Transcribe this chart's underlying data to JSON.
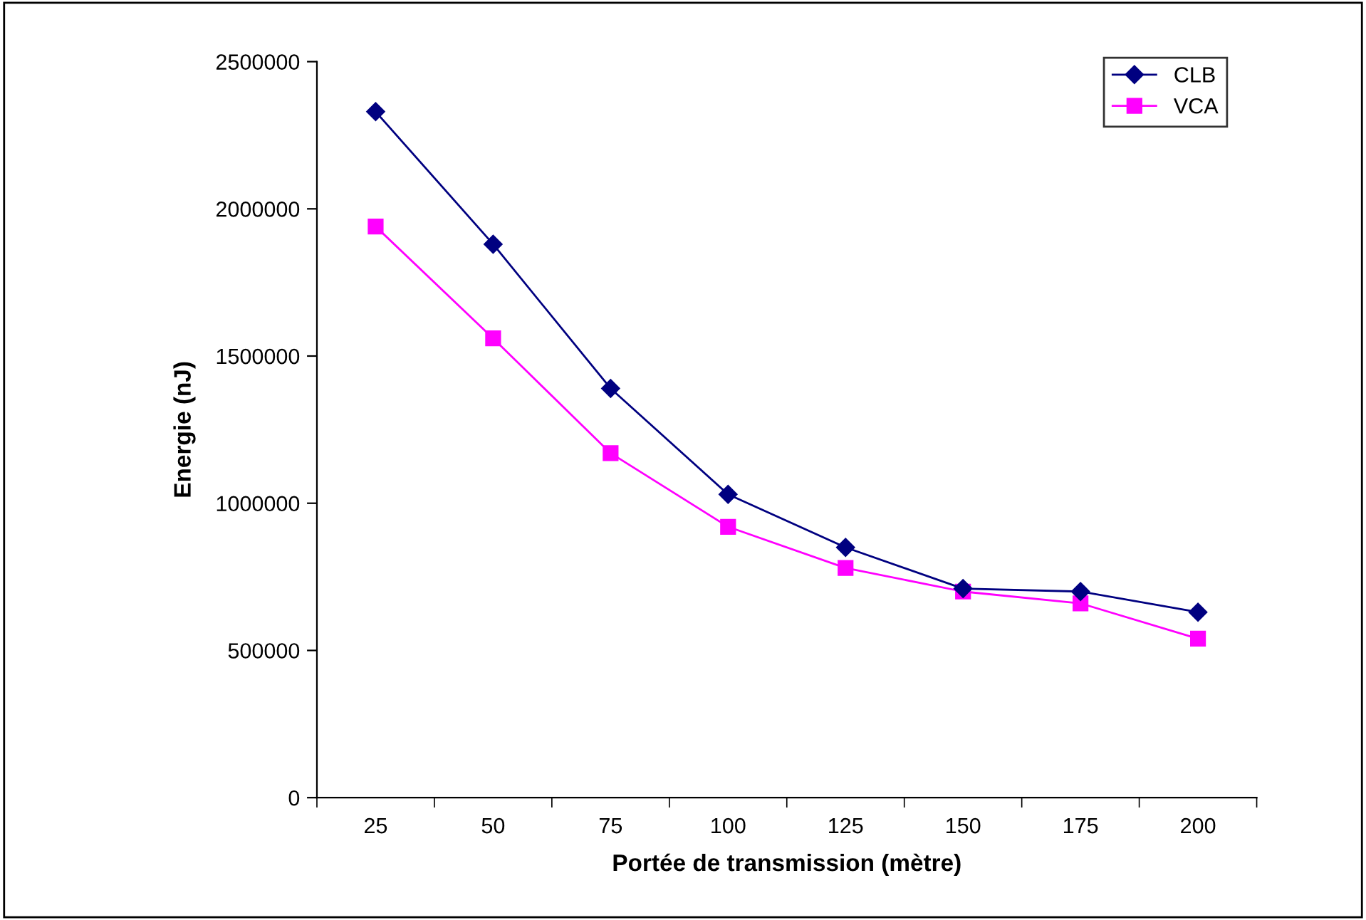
{
  "chart_data": {
    "type": "line",
    "xlabel": "Portée de transmission (mètre)",
    "ylabel": "Energie (nJ)",
    "categories": [
      "25",
      "50",
      "75",
      "100",
      "125",
      "150",
      "175",
      "200"
    ],
    "series": [
      {
        "name": "CLB",
        "color": "#000080",
        "marker": "diamond",
        "values": [
          2330000,
          1880000,
          1390000,
          1030000,
          850000,
          710000,
          700000,
          630000
        ]
      },
      {
        "name": "VCA",
        "color": "#ff00ff",
        "marker": "square",
        "values": [
          1940000,
          1560000,
          1170000,
          920000,
          780000,
          700000,
          660000,
          540000
        ]
      }
    ],
    "ylim": [
      0,
      2500000
    ],
    "yticks": [
      0,
      500000,
      1000000,
      1500000,
      2000000,
      2500000
    ],
    "grid": false,
    "legend": "top right"
  }
}
